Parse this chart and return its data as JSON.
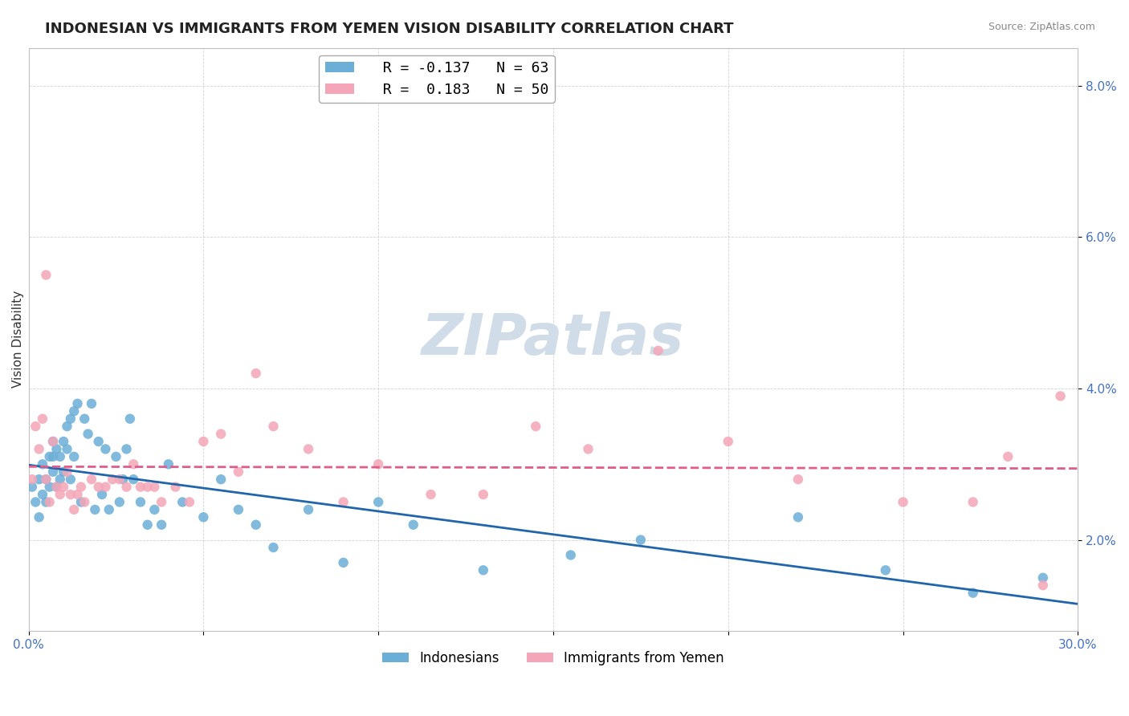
{
  "title": "INDONESIAN VS IMMIGRANTS FROM YEMEN VISION DISABILITY CORRELATION CHART",
  "source": "Source: ZipAtlas.com",
  "ylabel": "Vision Disability",
  "xlabel": "",
  "xlim": [
    0.0,
    0.3
  ],
  "ylim": [
    0.008,
    0.085
  ],
  "yticks": [
    0.02,
    0.04,
    0.06,
    0.08
  ],
  "ytick_labels": [
    "2.0%",
    "4.0%",
    "6.0%",
    "8.0%"
  ],
  "legend_r1": "R = -0.137",
  "legend_n1": "N = 63",
  "legend_r2": "R =  0.183",
  "legend_n2": "N = 50",
  "blue_color": "#6baed6",
  "pink_color": "#f4a6b8",
  "blue_line_color": "#2166ac",
  "pink_line_color": "#e05c8a",
  "title_fontsize": 13,
  "axis_label_fontsize": 11,
  "tick_fontsize": 11,
  "indonesians_x": [
    0.001,
    0.002,
    0.003,
    0.003,
    0.004,
    0.004,
    0.005,
    0.005,
    0.006,
    0.006,
    0.007,
    0.007,
    0.007,
    0.008,
    0.008,
    0.009,
    0.009,
    0.01,
    0.01,
    0.011,
    0.011,
    0.012,
    0.012,
    0.013,
    0.013,
    0.014,
    0.015,
    0.016,
    0.017,
    0.018,
    0.019,
    0.02,
    0.021,
    0.022,
    0.023,
    0.025,
    0.026,
    0.027,
    0.028,
    0.029,
    0.03,
    0.032,
    0.034,
    0.036,
    0.038,
    0.04,
    0.044,
    0.05,
    0.055,
    0.06,
    0.065,
    0.07,
    0.08,
    0.09,
    0.1,
    0.11,
    0.13,
    0.155,
    0.175,
    0.22,
    0.245,
    0.27,
    0.29
  ],
  "indonesians_y": [
    0.027,
    0.025,
    0.023,
    0.028,
    0.026,
    0.03,
    0.025,
    0.028,
    0.027,
    0.031,
    0.033,
    0.031,
    0.029,
    0.032,
    0.027,
    0.031,
    0.028,
    0.033,
    0.029,
    0.035,
    0.032,
    0.036,
    0.028,
    0.037,
    0.031,
    0.038,
    0.025,
    0.036,
    0.034,
    0.038,
    0.024,
    0.033,
    0.026,
    0.032,
    0.024,
    0.031,
    0.025,
    0.028,
    0.032,
    0.036,
    0.028,
    0.025,
    0.022,
    0.024,
    0.022,
    0.03,
    0.025,
    0.023,
    0.028,
    0.024,
    0.022,
    0.019,
    0.024,
    0.017,
    0.025,
    0.022,
    0.016,
    0.018,
    0.02,
    0.023,
    0.016,
    0.013,
    0.015
  ],
  "yemen_x": [
    0.001,
    0.002,
    0.003,
    0.004,
    0.005,
    0.005,
    0.006,
    0.007,
    0.008,
    0.009,
    0.01,
    0.011,
    0.012,
    0.013,
    0.014,
    0.015,
    0.016,
    0.018,
    0.02,
    0.022,
    0.024,
    0.026,
    0.028,
    0.03,
    0.032,
    0.034,
    0.036,
    0.038,
    0.042,
    0.046,
    0.05,
    0.055,
    0.06,
    0.065,
    0.07,
    0.08,
    0.09,
    0.1,
    0.115,
    0.13,
    0.145,
    0.16,
    0.18,
    0.2,
    0.22,
    0.25,
    0.27,
    0.28,
    0.29,
    0.295
  ],
  "yemen_y": [
    0.028,
    0.035,
    0.032,
    0.036,
    0.028,
    0.055,
    0.025,
    0.033,
    0.027,
    0.026,
    0.027,
    0.029,
    0.026,
    0.024,
    0.026,
    0.027,
    0.025,
    0.028,
    0.027,
    0.027,
    0.028,
    0.028,
    0.027,
    0.03,
    0.027,
    0.027,
    0.027,
    0.025,
    0.027,
    0.025,
    0.033,
    0.034,
    0.029,
    0.042,
    0.035,
    0.032,
    0.025,
    0.03,
    0.026,
    0.026,
    0.035,
    0.032,
    0.045,
    0.033,
    0.028,
    0.025,
    0.025,
    0.031,
    0.014,
    0.039
  ],
  "background_color": "#ffffff",
  "watermark_text": "ZIPatlas",
  "watermark_color": "#d0dce8"
}
